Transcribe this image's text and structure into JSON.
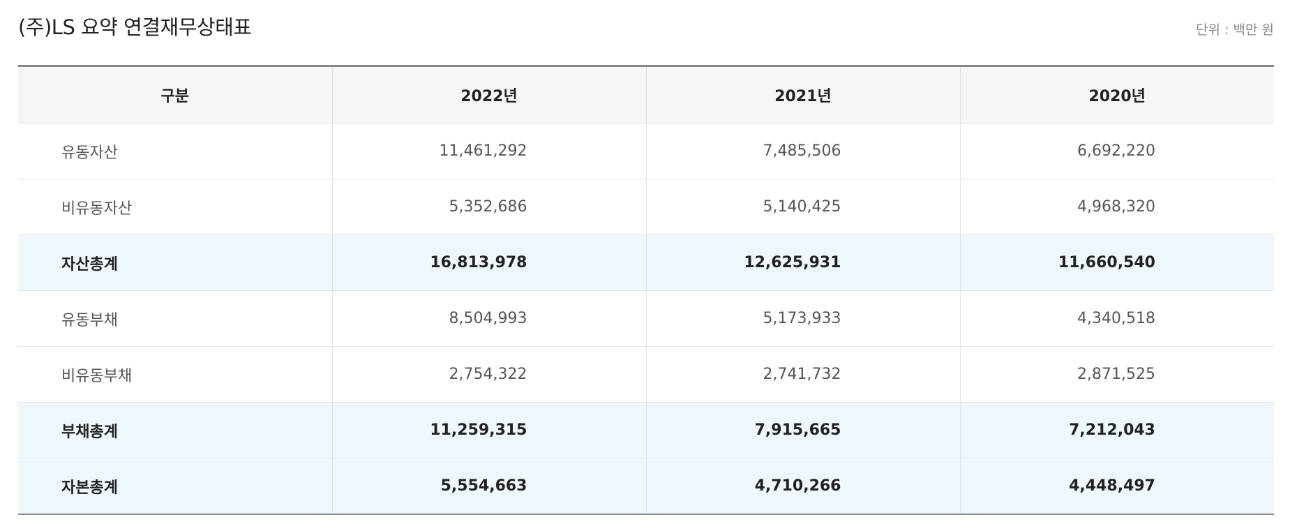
{
  "header": {
    "title": "(주)LS 요약 연결재무상태표",
    "unit": "단위 : 백만 원"
  },
  "table": {
    "columns": [
      "구분",
      "2022년",
      "2021년",
      "2020년"
    ],
    "rows": [
      {
        "label": "유동자산",
        "values": [
          "11,461,292",
          "7,485,506",
          "6,692,220"
        ],
        "total": false
      },
      {
        "label": "비유동자산",
        "values": [
          "5,352,686",
          "5,140,425",
          "4,968,320"
        ],
        "total": false
      },
      {
        "label": "자산총계",
        "values": [
          "16,813,978",
          "12,625,931",
          "11,660,540"
        ],
        "total": true
      },
      {
        "label": "유동부채",
        "values": [
          "8,504,993",
          "5,173,933",
          "4,340,518"
        ],
        "total": false
      },
      {
        "label": "비유동부채",
        "values": [
          "2,754,322",
          "2,741,732",
          "2,871,525"
        ],
        "total": false
      },
      {
        "label": "부채총계",
        "values": [
          "11,259,315",
          "7,915,665",
          "7,212,043"
        ],
        "total": true
      },
      {
        "label": "자본총계",
        "values": [
          "5,554,663",
          "4,710,266",
          "4,448,497"
        ],
        "total": true
      }
    ]
  }
}
